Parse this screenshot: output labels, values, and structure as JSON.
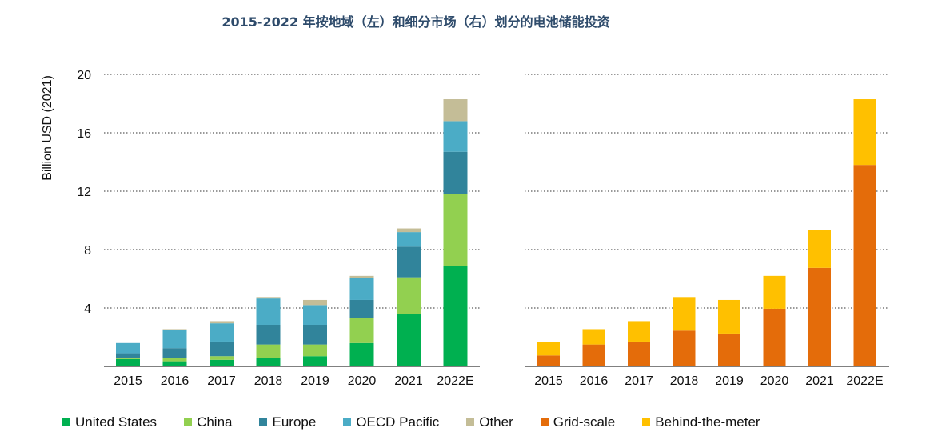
{
  "title": "2015-2022 年按地域（左）和细分市场（右）划分的电池储能投资",
  "colors": {
    "united_states": "#00b050",
    "china": "#92d050",
    "europe": "#31849b",
    "oecd_pacific": "#4bacc6",
    "other": "#c4bd97",
    "grid_scale": "#e46c0a",
    "behind_the_meter": "#ffc000",
    "gridline": "#999999"
  },
  "legend": [
    {
      "label": "United States",
      "color": "#00b050"
    },
    {
      "label": "China",
      "color": "#92d050"
    },
    {
      "label": "Europe",
      "color": "#31849b"
    },
    {
      "label": "OECD Pacific",
      "color": "#4bacc6"
    },
    {
      "label": "Other",
      "color": "#c4bd97"
    },
    {
      "label": "Grid-scale",
      "color": "#e46c0a"
    },
    {
      "label": "Behind-the-meter",
      "color": "#ffc000"
    }
  ],
  "chart_data": [
    {
      "type": "bar",
      "stacked": true,
      "panel": "left",
      "ylabel": "Billion USD (2021)",
      "ylim": [
        0,
        20
      ],
      "yticks": [
        4,
        8,
        12,
        16,
        20
      ],
      "grid": true,
      "categories": [
        "2015",
        "2016",
        "2017",
        "2018",
        "2019",
        "2020",
        "2021",
        "2022E"
      ],
      "series": [
        {
          "name": "United States",
          "color": "#00b050",
          "values": [
            0.5,
            0.35,
            0.45,
            0.6,
            0.7,
            1.6,
            3.6,
            6.9
          ]
        },
        {
          "name": "China",
          "color": "#92d050",
          "values": [
            0.05,
            0.2,
            0.25,
            0.9,
            0.8,
            1.7,
            2.5,
            4.9
          ]
        },
        {
          "name": "Europe",
          "color": "#31849b",
          "values": [
            0.35,
            0.7,
            1.0,
            1.35,
            1.35,
            1.25,
            2.1,
            2.9
          ]
        },
        {
          "name": "OECD Pacific",
          "color": "#4bacc6",
          "values": [
            0.7,
            1.25,
            1.25,
            1.8,
            1.35,
            1.5,
            1.0,
            2.1
          ]
        },
        {
          "name": "Other",
          "color": "#c4bd97",
          "values": [
            0.0,
            0.05,
            0.15,
            0.1,
            0.35,
            0.15,
            0.25,
            1.5
          ]
        }
      ]
    },
    {
      "type": "bar",
      "stacked": true,
      "panel": "right",
      "ylim": [
        0,
        20
      ],
      "yticks": [
        4,
        8,
        12,
        16,
        20
      ],
      "grid": true,
      "categories": [
        "2015",
        "2016",
        "2017",
        "2018",
        "2019",
        "2020",
        "2021",
        "2022E"
      ],
      "series": [
        {
          "name": "Grid-scale",
          "color": "#e46c0a",
          "values": [
            0.75,
            1.5,
            1.7,
            2.45,
            2.25,
            3.95,
            6.75,
            13.8
          ]
        },
        {
          "name": "Behind-the-meter",
          "color": "#ffc000",
          "values": [
            0.9,
            1.05,
            1.4,
            2.3,
            2.3,
            2.25,
            2.6,
            4.5
          ]
        }
      ]
    }
  ]
}
